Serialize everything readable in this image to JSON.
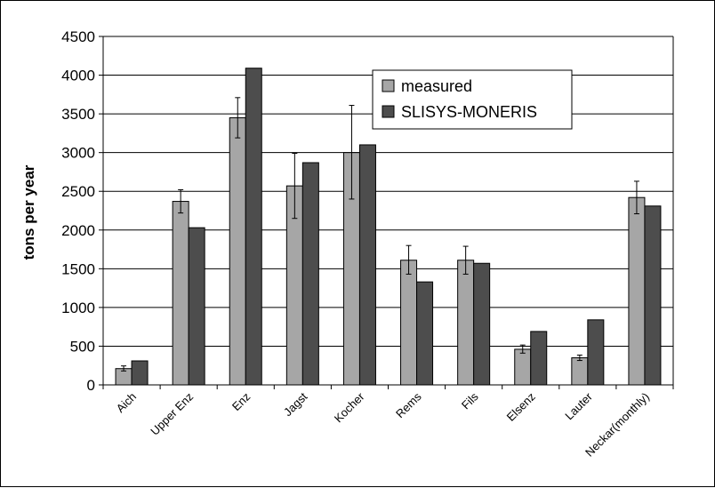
{
  "chart_data": {
    "type": "bar",
    "title": "",
    "xlabel": "",
    "ylabel": "tons per year",
    "ylim": [
      0,
      4500
    ],
    "yticks": [
      "0",
      "500",
      "1000",
      "1500",
      "2000",
      "2500",
      "3000",
      "3500",
      "4000",
      "4500"
    ],
    "grid": true,
    "legend_position": "top-right",
    "categories": [
      "Aich",
      "Upper Enz",
      "Enz",
      "Jagst",
      "Kocher",
      "Rems",
      "Fils",
      "Elsenz",
      "Lauter",
      "Neckar(monthly)"
    ],
    "series": [
      {
        "name": "measured",
        "color": "#a6a6a6",
        "values": [
          210,
          2370,
          3450,
          2570,
          3000,
          1610,
          1610,
          460,
          350,
          2420
        ],
        "error_bars": [
          [
            180,
            245
          ],
          [
            2220,
            2520
          ],
          [
            3190,
            3710
          ],
          [
            2150,
            2990
          ],
          [
            2400,
            3610
          ],
          [
            1430,
            1800
          ],
          [
            1430,
            1790
          ],
          [
            410,
            515
          ],
          [
            315,
            385
          ],
          [
            2210,
            2630
          ]
        ]
      },
      {
        "name": "SLISYS-MONERIS",
        "color": "#4d4d4d",
        "values": [
          310,
          2030,
          4090,
          2870,
          3100,
          1330,
          1570,
          690,
          840,
          2310
        ]
      }
    ]
  }
}
